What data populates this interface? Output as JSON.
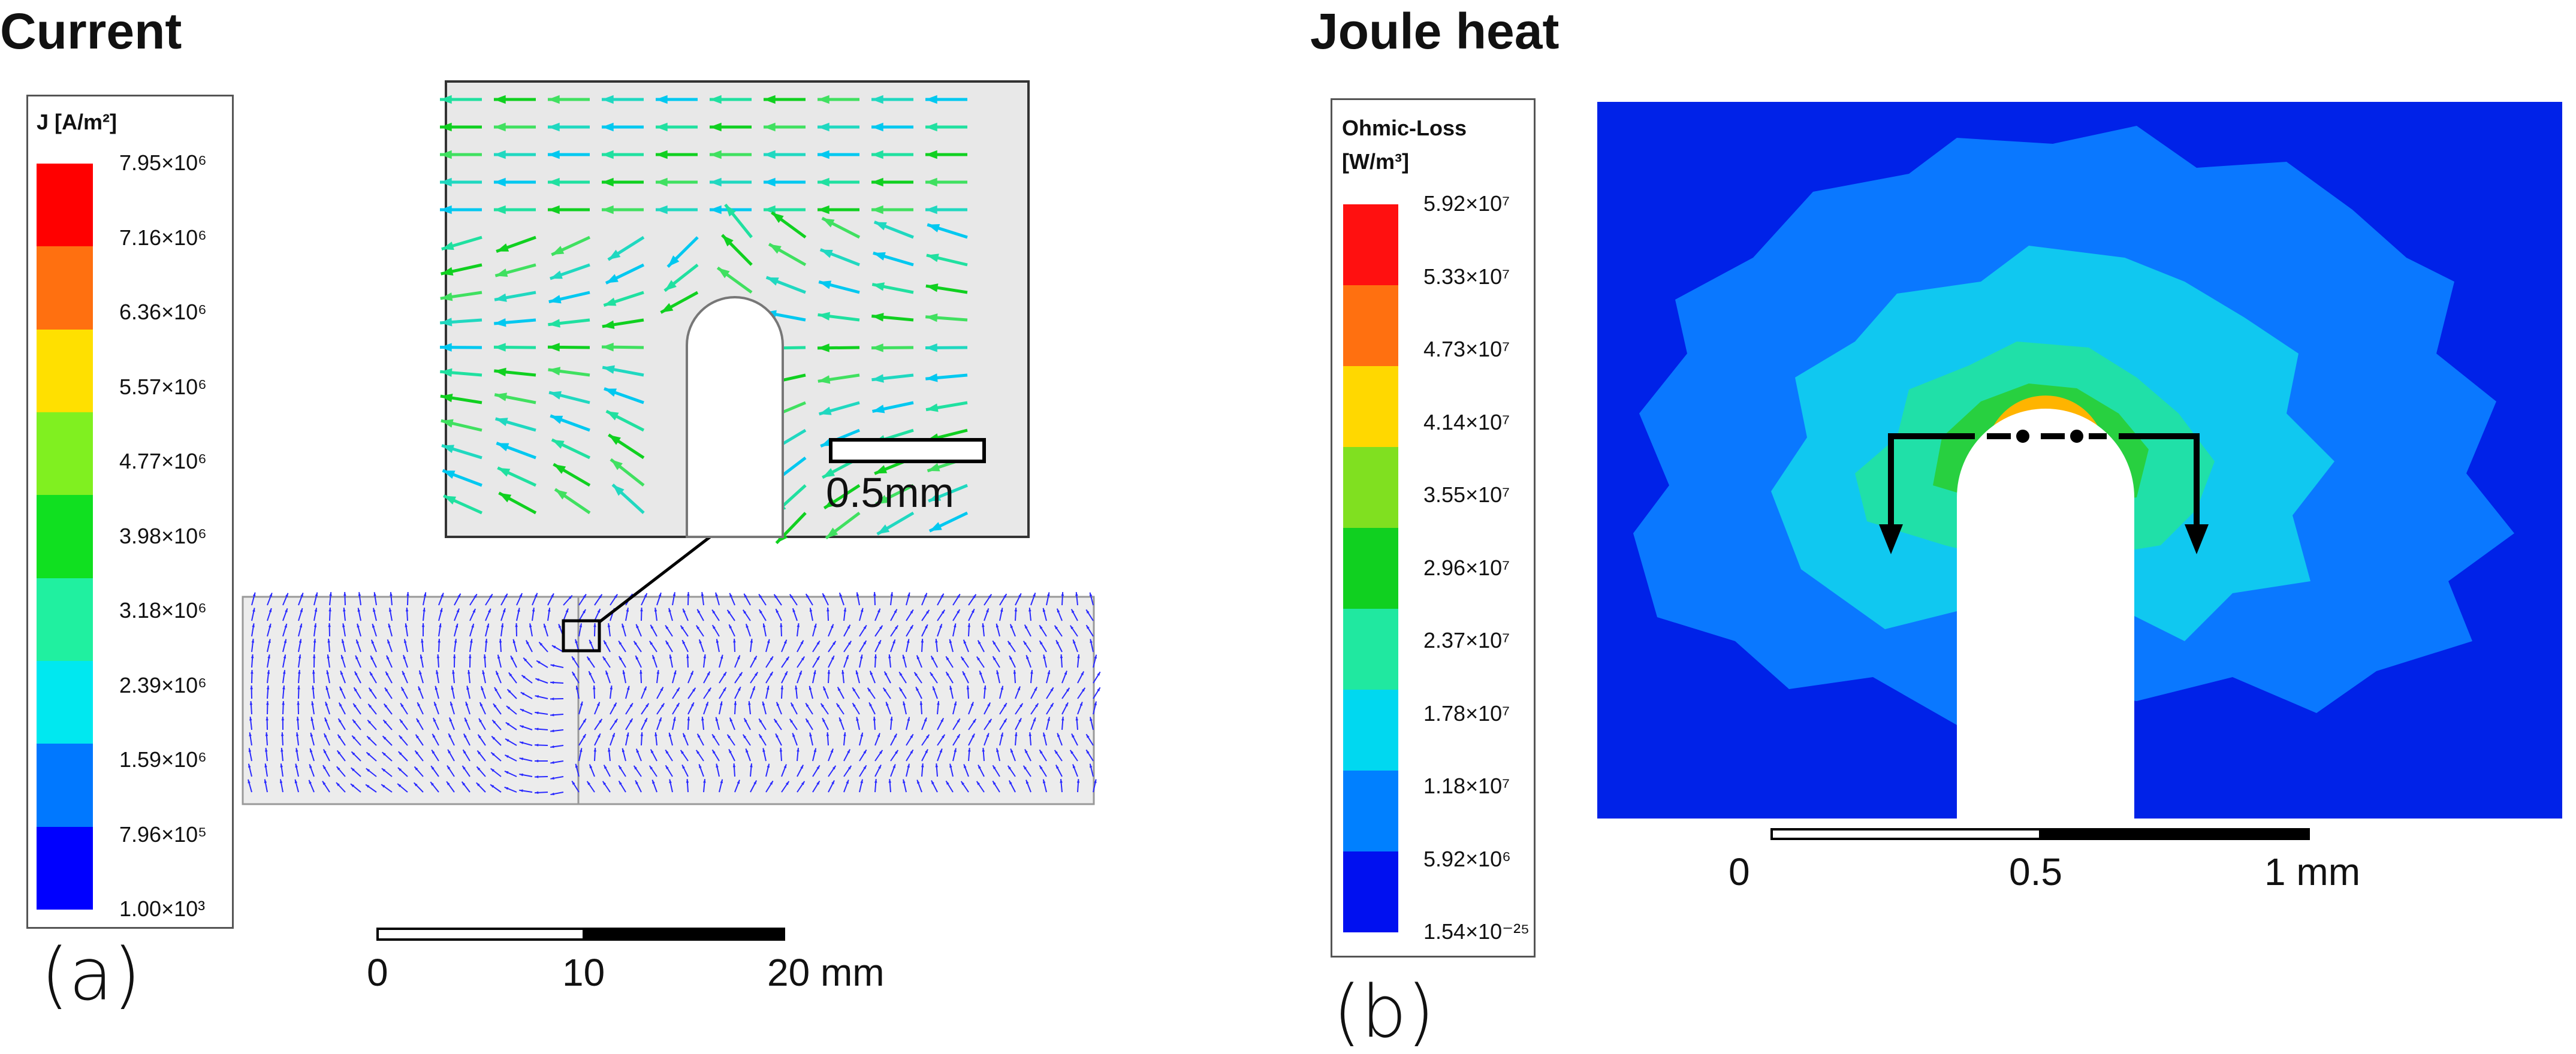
{
  "panel_a": {
    "title": "Current",
    "letter": "(a)",
    "legend": {
      "label": "J [A/m²]",
      "colors": [
        "#ff0000",
        "#ff7010",
        "#ffe000",
        "#80f020",
        "#10e020",
        "#20f0a0",
        "#00e8f0",
        "#0078ff",
        "#0000ff"
      ],
      "ticks": [
        "7.95×10⁶",
        "7.16×10⁶",
        "6.36×10⁶",
        "5.57×10⁶",
        "4.77×10⁶",
        "3.98×10⁶",
        "3.18×10⁶",
        "2.39×10⁶",
        "1.59×10⁶",
        "7.96×10⁵",
        "1.00×10³"
      ]
    },
    "inset_scale_label": "0.5mm",
    "scale_labels": [
      "0",
      "10",
      "20 mm"
    ]
  },
  "panel_b": {
    "title": "Joule heat",
    "letter": "(b)",
    "legend": {
      "label_line1": "Ohmic-Loss",
      "label_line2": "[W/m³]",
      "colors": [
        "#ff1010",
        "#ff7010",
        "#ffd800",
        "#80e020",
        "#10d020",
        "#20e8a0",
        "#00d8f0",
        "#0080ff",
        "#0010f0"
      ],
      "ticks": [
        "5.92×10⁷",
        "5.33×10⁷",
        "4.73×10⁷",
        "4.14×10⁷",
        "3.55×10⁷",
        "2.96×10⁷",
        "2.37×10⁷",
        "1.78×10⁷",
        "1.18×10⁷",
        "5.92×10⁶",
        "1.54×10⁻²⁵"
      ]
    },
    "scale_labels": [
      "0",
      "0.5",
      "1 mm"
    ]
  }
}
